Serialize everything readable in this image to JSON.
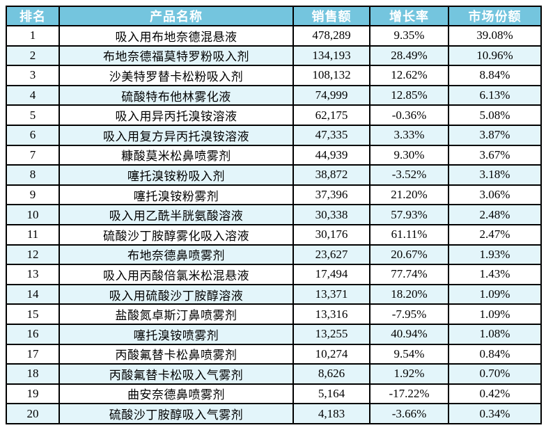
{
  "colors": {
    "header_bg": "#74C5DE",
    "header_text": "#FFFFFF",
    "row_alt_bg": "#E3F5FA",
    "row_bg": "#FFFFFF",
    "border": "#000000"
  },
  "header": {
    "rank": "排名",
    "name": "产品名称",
    "sales": "销售额",
    "growth": "增长率",
    "share": "市场份额"
  },
  "rows": [
    {
      "rank": "1",
      "name": "吸入用布地奈德混悬液",
      "sales": "478,289",
      "growth": "9.35%",
      "share": "39.08%"
    },
    {
      "rank": "2",
      "name": "布地奈德福莫特罗粉吸入剂",
      "sales": "134,193",
      "growth": "28.49%",
      "share": "10.96%"
    },
    {
      "rank": "3",
      "name": "沙美特罗替卡松粉吸入剂",
      "sales": "108,132",
      "growth": "12.62%",
      "share": "8.84%"
    },
    {
      "rank": "4",
      "name": "硫酸特布他林雾化液",
      "sales": "74,999",
      "growth": "12.85%",
      "share": "6.13%"
    },
    {
      "rank": "5",
      "name": "吸入用异丙托溴铵溶液",
      "sales": "62,175",
      "growth": "-0.36%",
      "share": "5.08%"
    },
    {
      "rank": "6",
      "name": "吸入用复方异丙托溴铵溶液",
      "sales": "47,335",
      "growth": "3.33%",
      "share": "3.87%"
    },
    {
      "rank": "7",
      "name": "糠酸莫米松鼻喷雾剂",
      "sales": "44,939",
      "growth": "9.30%",
      "share": "3.67%"
    },
    {
      "rank": "8",
      "name": "噻托溴铵粉吸入剂",
      "sales": "38,872",
      "growth": "-3.52%",
      "share": "3.18%"
    },
    {
      "rank": "9",
      "name": "噻托溴铵粉雾剂",
      "sales": "37,396",
      "growth": "21.20%",
      "share": "3.06%"
    },
    {
      "rank": "10",
      "name": "吸入用乙酰半胱氨酸溶液",
      "sales": "30,338",
      "growth": "57.93%",
      "share": "2.48%"
    },
    {
      "rank": "11",
      "name": "硫酸沙丁胺醇雾化吸入溶液",
      "sales": "30,176",
      "growth": "61.11%",
      "share": "2.47%"
    },
    {
      "rank": "12",
      "name": "布地奈德鼻喷雾剂",
      "sales": "23,627",
      "growth": "20.67%",
      "share": "1.93%"
    },
    {
      "rank": "13",
      "name": "吸入用丙酸倍氯米松混悬液",
      "sales": "17,494",
      "growth": "77.74%",
      "share": "1.43%"
    },
    {
      "rank": "14",
      "name": "吸入用硫酸沙丁胺醇溶液",
      "sales": "13,371",
      "growth": "18.20%",
      "share": "1.09%"
    },
    {
      "rank": "15",
      "name": "盐酸氮卓斯汀鼻喷雾剂",
      "sales": "13,316",
      "growth": "-7.95%",
      "share": "1.09%"
    },
    {
      "rank": "16",
      "name": "噻托溴铵喷雾剂",
      "sales": "13,255",
      "growth": "40.94%",
      "share": "1.08%"
    },
    {
      "rank": "17",
      "name": "丙酸氟替卡松鼻喷雾剂",
      "sales": "10,274",
      "growth": "9.54%",
      "share": "0.84%"
    },
    {
      "rank": "18",
      "name": "丙酸氟替卡松吸入气雾剂",
      "sales": "8,626",
      "growth": "1.92%",
      "share": "0.70%"
    },
    {
      "rank": "19",
      "name": "曲安奈德鼻喷雾剂",
      "sales": "5,164",
      "growth": "-17.22%",
      "share": "0.42%"
    },
    {
      "rank": "20",
      "name": "硫酸沙丁胺醇吸入气雾剂",
      "sales": "4,183",
      "growth": "-3.66%",
      "share": "0.34%"
    }
  ],
  "chart_data": {
    "type": "table",
    "title": "",
    "columns": [
      "排名",
      "产品名称",
      "销售额",
      "增长率",
      "市场份额"
    ],
    "values": [
      [
        1,
        "吸入用布地奈德混悬液",
        478289,
        "9.35%",
        "39.08%"
      ],
      [
        2,
        "布地奈德福莫特罗粉吸入剂",
        134193,
        "28.49%",
        "10.96%"
      ],
      [
        3,
        "沙美特罗替卡松粉吸入剂",
        108132,
        "12.62%",
        "8.84%"
      ],
      [
        4,
        "硫酸特布他林雾化液",
        74999,
        "12.85%",
        "6.13%"
      ],
      [
        5,
        "吸入用异丙托溴铵溶液",
        62175,
        "-0.36%",
        "5.08%"
      ],
      [
        6,
        "吸入用复方异丙托溴铵溶液",
        47335,
        "3.33%",
        "3.87%"
      ],
      [
        7,
        "糠酸莫米松鼻喷雾剂",
        44939,
        "9.30%",
        "3.67%"
      ],
      [
        8,
        "噻托溴铵粉吸入剂",
        38872,
        "-3.52%",
        "3.18%"
      ],
      [
        9,
        "噻托溴铵粉雾剂",
        37396,
        "21.20%",
        "3.06%"
      ],
      [
        10,
        "吸入用乙酰半胱氨酸溶液",
        30338,
        "57.93%",
        "2.48%"
      ],
      [
        11,
        "硫酸沙丁胺醇雾化吸入溶液",
        30176,
        "61.11%",
        "2.47%"
      ],
      [
        12,
        "布地奈德鼻喷雾剂",
        23627,
        "20.67%",
        "1.93%"
      ],
      [
        13,
        "吸入用丙酸倍氯米松混悬液",
        17494,
        "77.74%",
        "1.43%"
      ],
      [
        14,
        "吸入用硫酸沙丁胺醇溶液",
        13371,
        "18.20%",
        "1.09%"
      ],
      [
        15,
        "盐酸氮卓斯汀鼻喷雾剂",
        13316,
        "-7.95%",
        "1.09%"
      ],
      [
        16,
        "噻托溴铵喷雾剂",
        13255,
        "40.94%",
        "1.08%"
      ],
      [
        17,
        "丙酸氟替卡松鼻喷雾剂",
        10274,
        "9.54%",
        "0.84%"
      ],
      [
        18,
        "丙酸氟替卡松吸入气雾剂",
        8626,
        "1.92%",
        "0.70%"
      ],
      [
        19,
        "曲安奈德鼻喷雾剂",
        5164,
        "-17.22%",
        "0.42%"
      ],
      [
        20,
        "硫酸沙丁胺醇吸入气雾剂",
        4183,
        "-3.66%",
        "0.34%"
      ]
    ]
  }
}
